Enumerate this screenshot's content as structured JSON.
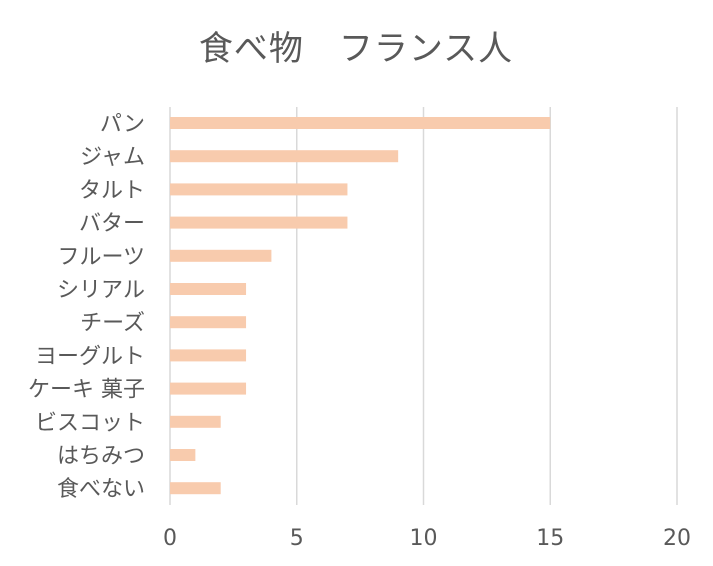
{
  "chart_data": {
    "type": "bar",
    "orientation": "horizontal",
    "title": "食べ物　フランス人",
    "xlabel": "",
    "ylabel": "",
    "categories": [
      "パン",
      "ジャム",
      "タルト",
      "バター",
      "フルーツ",
      "シリアル",
      "チーズ",
      "ヨーグルト",
      "ケーキ 菓子",
      "ビスコット",
      "はちみつ",
      "食べない"
    ],
    "values": [
      15,
      9,
      7,
      7,
      4,
      3,
      3,
      3,
      3,
      2,
      1,
      2
    ],
    "xlim": [
      0,
      20
    ],
    "xticks": [
      0,
      5,
      10,
      15,
      20
    ],
    "grid": "vertical",
    "legend": "none",
    "bar_color": "#f8cbad"
  }
}
